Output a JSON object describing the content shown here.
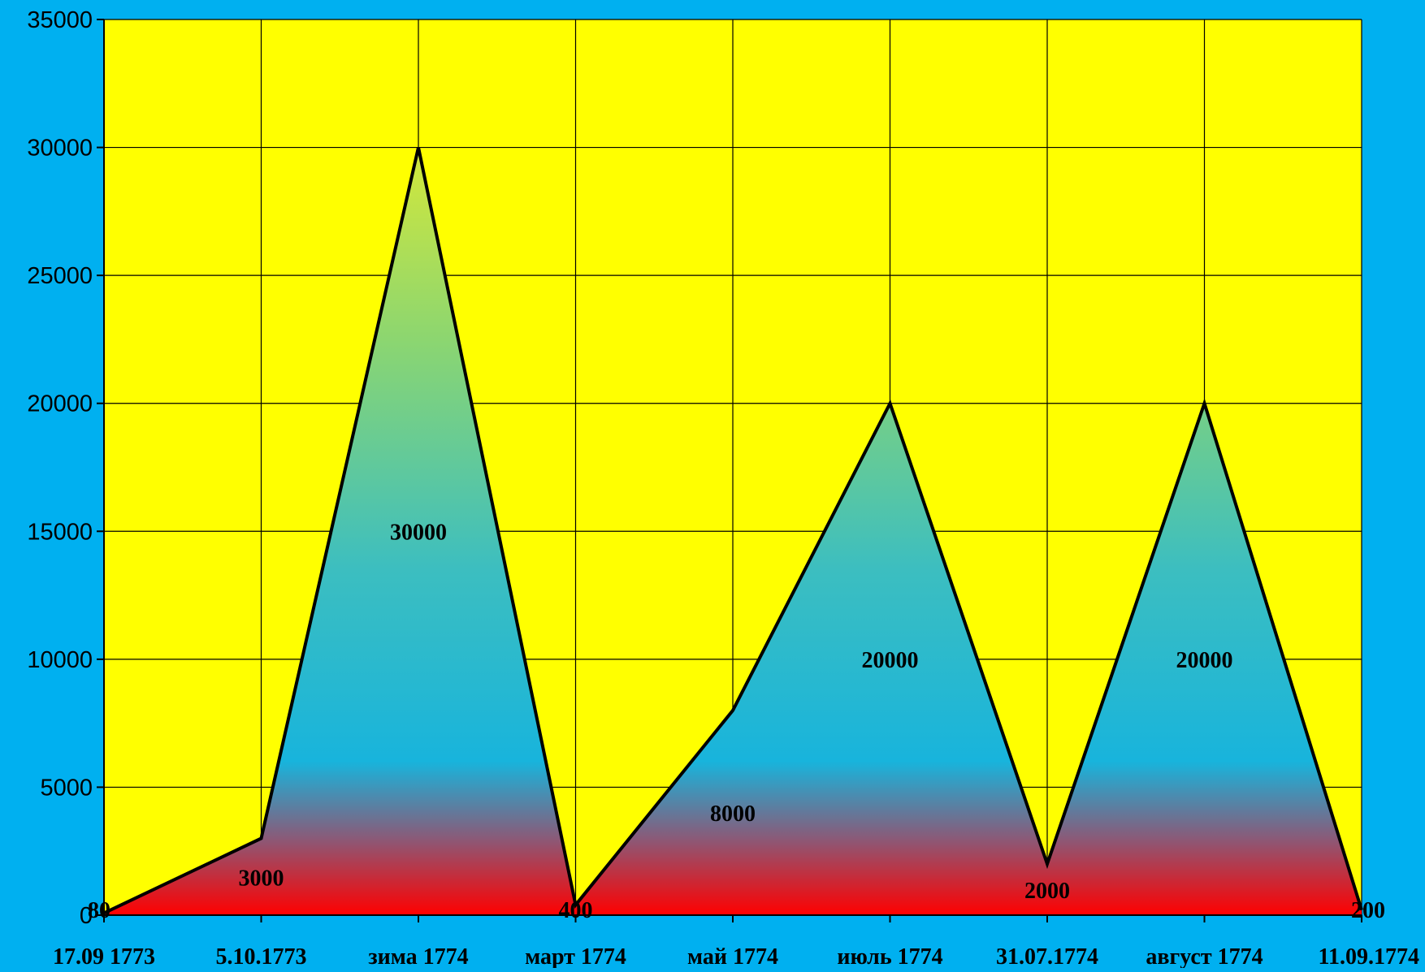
{
  "chart_data": {
    "type": "area",
    "title": "",
    "xlabel": "",
    "ylabel": "",
    "ylim": [
      0,
      35000
    ],
    "yticks": [
      0,
      5000,
      10000,
      15000,
      20000,
      25000,
      30000,
      35000
    ],
    "grid": true,
    "legend": "none",
    "categories": [
      "17.09 1773",
      "5.10.1773",
      "зима 1774",
      "март 1774",
      "май 1774",
      "июль 1774",
      "31.07.1774",
      "август 1774",
      "11.09.1774"
    ],
    "series": [
      {
        "values": [
          80,
          3000,
          30000,
          400,
          8000,
          20000,
          2000,
          20000,
          200
        ],
        "data_labels": [
          "80",
          "3000",
          "30000",
          "400",
          "8000",
          "20000",
          "2000",
          "20000",
          "200"
        ]
      }
    ],
    "colors": {
      "page_background": "#00b0f0",
      "plot_background": "#ffff00",
      "grid": "#000000",
      "area_top": "#d4e83a",
      "area_mid": "#18b4dc",
      "area_bottom": "#ff0000",
      "outline": "#000000"
    }
  }
}
